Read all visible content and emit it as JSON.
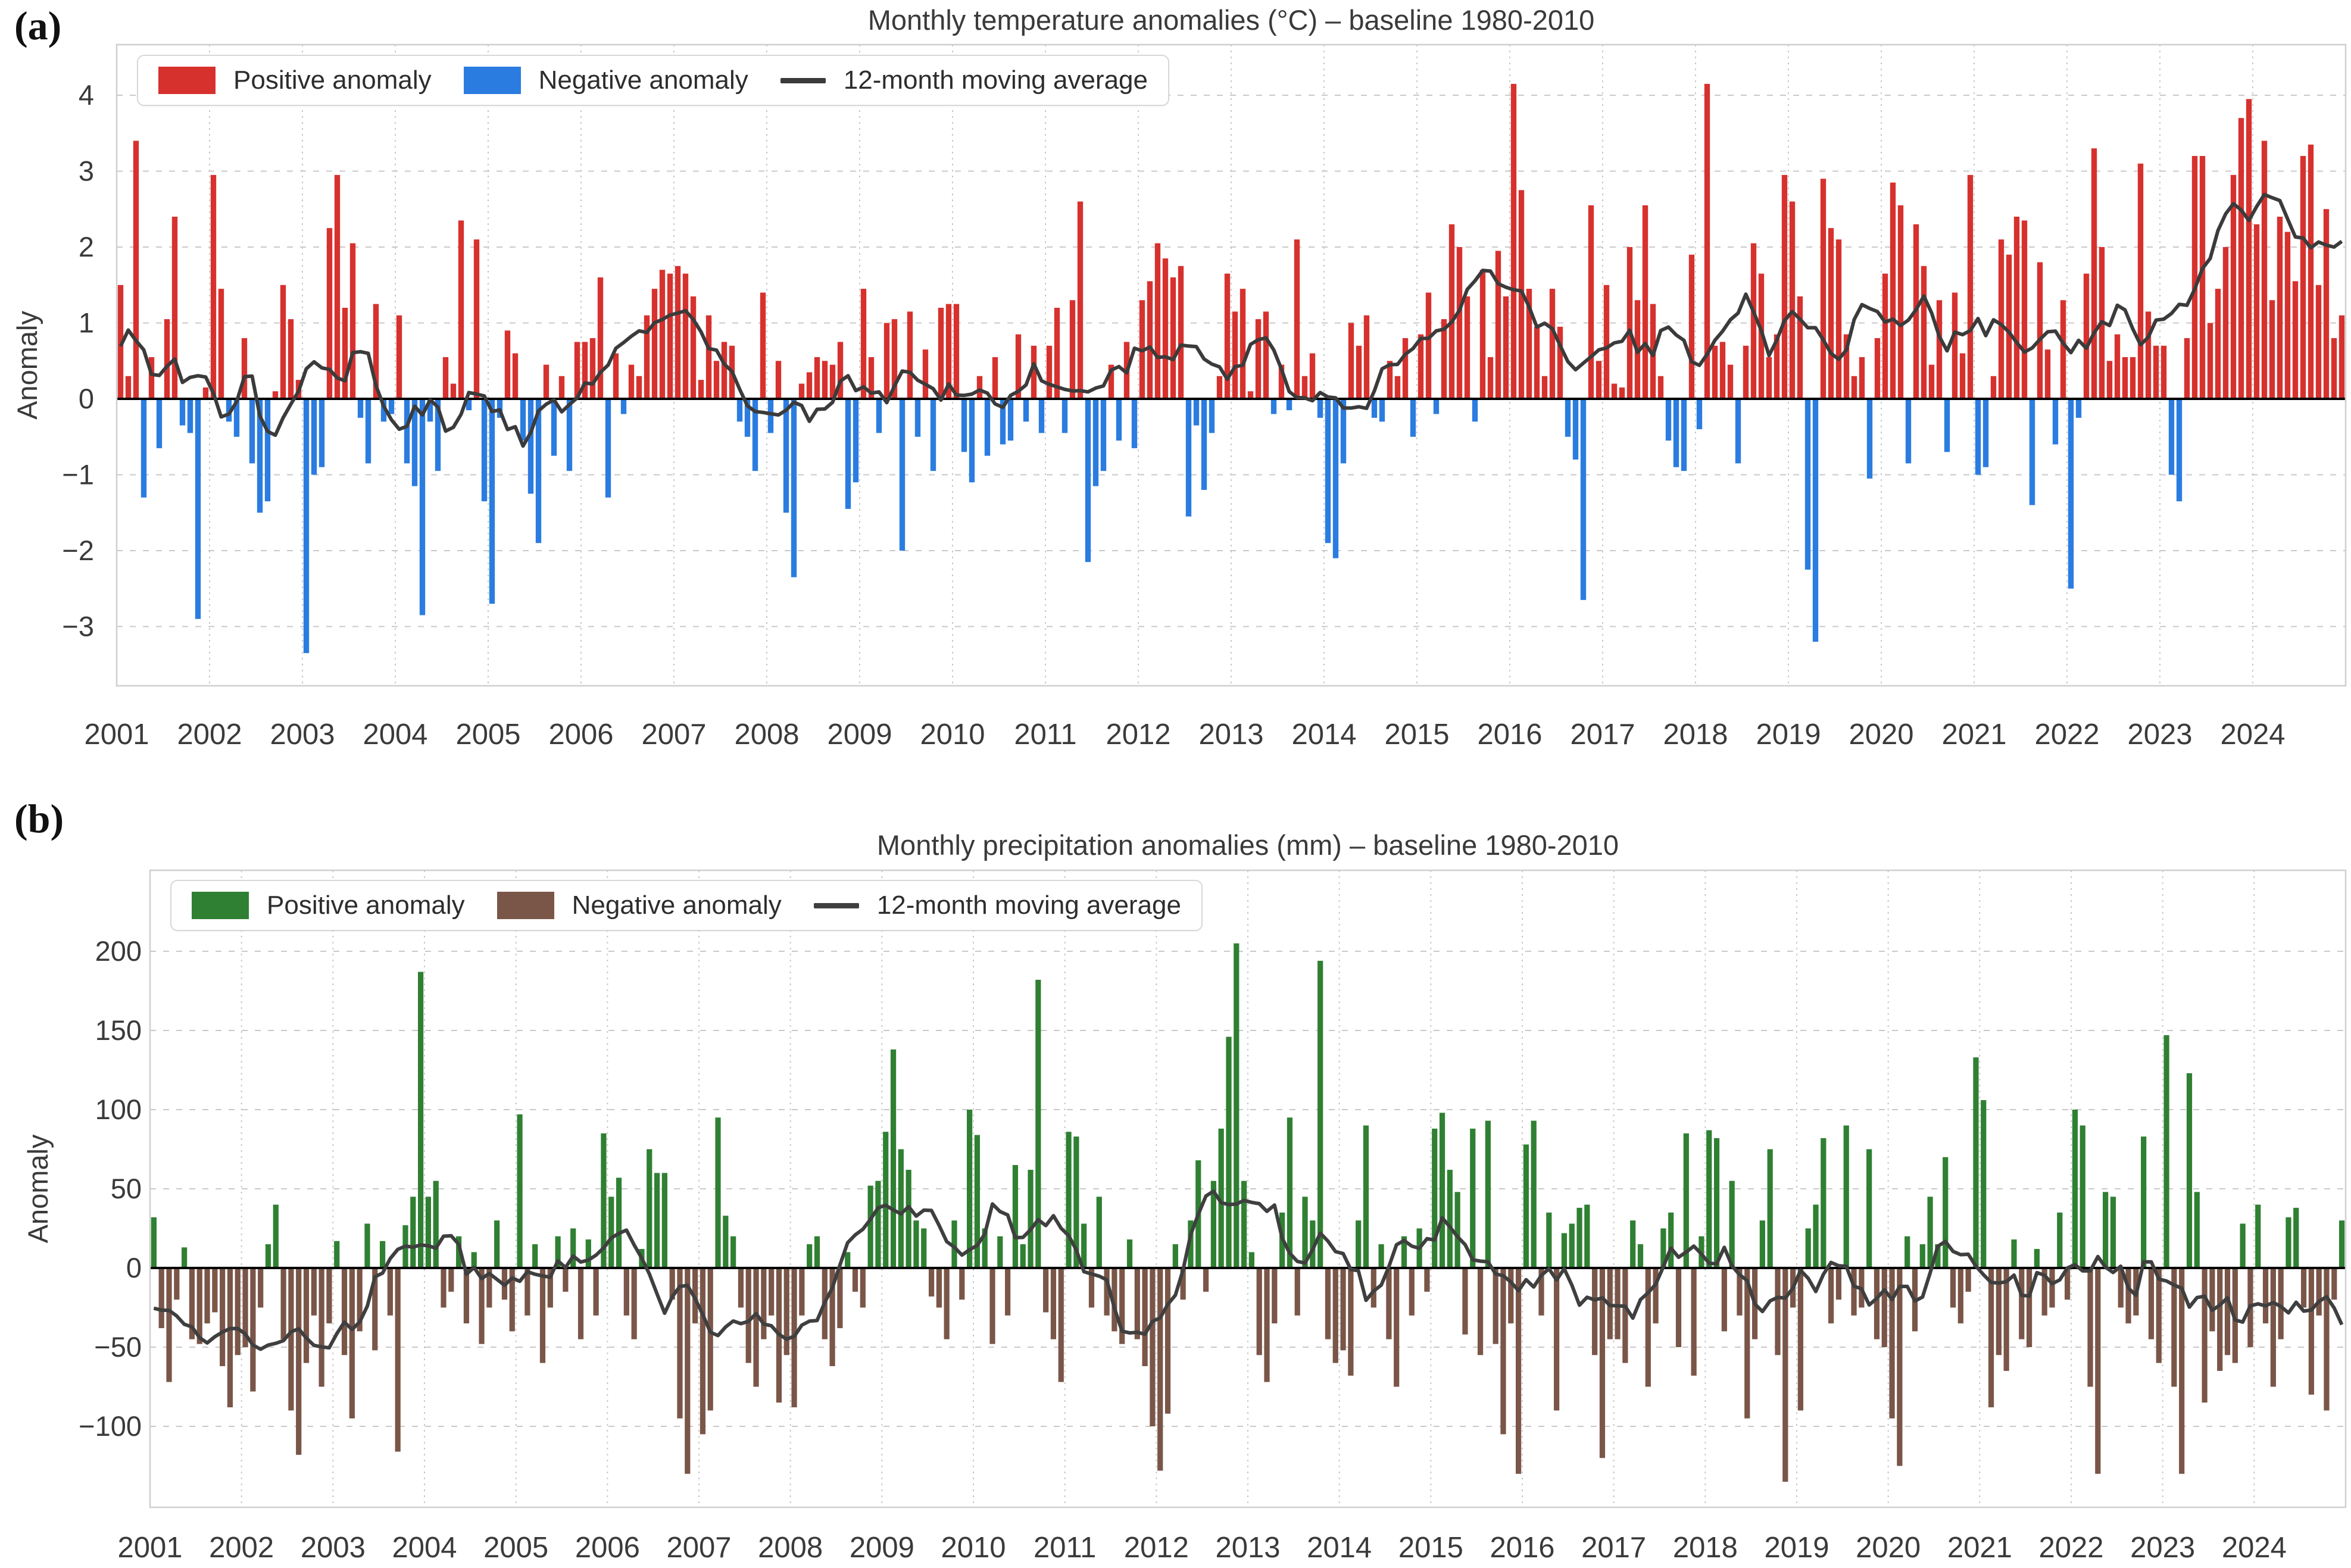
{
  "panel_a_label": "(a)",
  "panel_b_label": "(b)",
  "chart_data": [
    {
      "id": "temperature",
      "type": "bar",
      "title": "Monthly temperature anomalies (°C) – baseline 1980-2010",
      "ylabel": "Anomaly",
      "legend": [
        {
          "label": "Positive anomaly",
          "color": "#d7312e"
        },
        {
          "label": "Negative anomaly",
          "color": "#2b7ce0"
        },
        {
          "label": "12-month moving average",
          "color": "#3b3b3b"
        }
      ],
      "years": [
        "2001",
        "2002",
        "2003",
        "2004",
        "2005",
        "2006",
        "2007",
        "2008",
        "2009",
        "2010",
        "2011",
        "2012",
        "2013",
        "2014",
        "2015",
        "2016",
        "2017",
        "2018",
        "2019",
        "2020",
        "2021",
        "2022",
        "2023",
        "2024"
      ],
      "yticks": [
        4,
        3,
        2,
        1,
        0,
        -1,
        -2,
        -3
      ],
      "ylim": [
        -3.78,
        4.67
      ],
      "moving_average_window": 12,
      "colors": {
        "positive": "#d7312e",
        "negative": "#2b7ce0",
        "ma_line": "#3b3b3b",
        "grid": "#c9c9c9",
        "zero": "#000000",
        "frame": "#cfcfcf",
        "text": "#3a3a3a"
      },
      "monthly_values": [
        1.5,
        0.3,
        3.4,
        -1.3,
        0.55,
        -0.65,
        1.05,
        2.4,
        -0.35,
        -0.45,
        -2.9,
        0.15,
        2.95,
        1.45,
        -0.3,
        -0.5,
        0.8,
        -0.85,
        -1.5,
        -1.35,
        0.1,
        1.5,
        1.05,
        0.25,
        -3.35,
        -1.0,
        -0.9,
        2.25,
        2.95,
        1.2,
        2.05,
        -0.25,
        -0.85,
        1.25,
        -0.3,
        -0.2,
        1.1,
        -0.85,
        -1.15,
        -2.85,
        -0.3,
        -0.95,
        0.55,
        0.2,
        2.35,
        -0.15,
        2.1,
        -1.35,
        -2.7,
        -0.25,
        0.9,
        0.6,
        -0.55,
        -1.25,
        -1.9,
        0.45,
        -0.75,
        0.3,
        -0.95,
        0.75,
        0.75,
        0.8,
        1.6,
        -1.3,
        0.6,
        -0.2,
        0.45,
        0.3,
        1.1,
        1.45,
        1.7,
        1.65,
        1.75,
        1.65,
        1.35,
        0.25,
        1.1,
        0.5,
        0.75,
        0.7,
        -0.3,
        -0.5,
        -0.95,
        1.4,
        -0.45,
        0.5,
        -1.5,
        -2.35,
        0.2,
        0.35,
        0.55,
        0.5,
        0.45,
        0.75,
        -1.45,
        -1.1,
        1.45,
        0.55,
        -0.45,
        1.0,
        1.05,
        -2.0,
        1.15,
        -0.5,
        0.65,
        -0.95,
        1.2,
        1.25,
        1.25,
        -0.7,
        -1.1,
        0.3,
        -0.75,
        0.55,
        -0.6,
        -0.55,
        0.85,
        -0.3,
        0.7,
        -0.45,
        0.7,
        1.2,
        -0.45,
        1.3,
        2.6,
        -2.15,
        -1.15,
        -0.95,
        0.45,
        -0.55,
        0.75,
        -0.65,
        1.3,
        1.55,
        2.05,
        1.85,
        1.6,
        1.75,
        -1.55,
        -0.35,
        -1.2,
        -0.45,
        0.3,
        1.65,
        1.15,
        1.45,
        0.1,
        1.05,
        1.15,
        -0.2,
        0.45,
        -0.15,
        2.1,
        0.3,
        0.6,
        -0.25,
        -1.9,
        -2.1,
        -0.85,
        1.0,
        0.7,
        1.1,
        -0.25,
        -0.3,
        0.5,
        0.3,
        0.8,
        -0.5,
        0.85,
        1.4,
        -0.2,
        1.05,
        2.3,
        2.0,
        1.35,
        -0.3,
        1.7,
        0.55,
        1.95,
        1.35,
        4.15,
        2.75,
        1.45,
        0.95,
        0.3,
        1.45,
        0.95,
        -0.5,
        -0.8,
        -2.65,
        2.55,
        0.5,
        1.5,
        0.2,
        0.15,
        2.0,
        1.3,
        2.55,
        1.25,
        0.3,
        -0.55,
        -0.9,
        -0.95,
        1.9,
        -0.4,
        4.15,
        0.7,
        0.75,
        0.45,
        -0.85,
        0.7,
        2.05,
        1.65,
        0.55,
        0.85,
        2.95,
        2.6,
        1.35,
        -2.25,
        -3.2,
        2.9,
        2.25,
        2.1,
        0.85,
        0.3,
        0.55,
        -1.05,
        0.8,
        1.65,
        2.85,
        2.55,
        -0.85,
        2.3,
        1.75,
        0.45,
        1.3,
        -0.7,
        1.4,
        0.6,
        2.95,
        -1.0,
        -0.9,
        0.3,
        2.1,
        1.9,
        2.4,
        2.35,
        -1.4,
        1.8,
        0.65,
        -0.6,
        1.3,
        -2.5,
        -0.25,
        1.65,
        3.3,
        2.0,
        0.5,
        0.85,
        0.55,
        0.55,
        3.1,
        1.15,
        0.7,
        0.7,
        -1.0,
        -1.35,
        0.8,
        3.2,
        3.2,
        1.0,
        1.45,
        2.0,
        2.95,
        3.7,
        3.95,
        2.3,
        3.4,
        1.3,
        2.4,
        2.2,
        1.55,
        3.2,
        3.35,
        1.5,
        2.5,
        0.8,
        1.1
      ]
    },
    {
      "id": "precipitation",
      "type": "bar",
      "title": "Monthly precipitation anomalies (mm) – baseline 1980-2010",
      "ylabel": "Anomaly",
      "legend": [
        {
          "label": "Positive anomaly",
          "color": "#2f8032"
        },
        {
          "label": "Negative anomaly",
          "color": "#7a5648"
        },
        {
          "label": "12-month moving average",
          "color": "#3f3f3f"
        }
      ],
      "years": [
        "2001",
        "2002",
        "2003",
        "2004",
        "2005",
        "2006",
        "2007",
        "2008",
        "2009",
        "2010",
        "2011",
        "2012",
        "2013",
        "2014",
        "2015",
        "2016",
        "2017",
        "2018",
        "2019",
        "2020",
        "2021",
        "2022",
        "2023",
        "2024"
      ],
      "yticks": [
        200,
        150,
        100,
        50,
        0,
        -50,
        -100
      ],
      "ylim": [
        -151,
        251
      ],
      "moving_average_window": 12,
      "colors": {
        "positive": "#2f8032",
        "negative": "#7a5648",
        "ma_line": "#3f3f3f",
        "grid": "#c9c9c9",
        "zero": "#000000",
        "frame": "#cfcfcf",
        "text": "#3a3a3a"
      },
      "monthly_values": [
        32,
        -38,
        -72,
        -20,
        13,
        -45,
        -48,
        -35,
        -28,
        -62,
        -88,
        -55,
        -50,
        -78,
        -25,
        15,
        40,
        -45,
        -90,
        -118,
        -60,
        -30,
        -75,
        -35,
        17,
        -55,
        -95,
        -40,
        28,
        -52,
        17,
        -30,
        -116,
        27,
        45,
        187,
        45,
        55,
        -25,
        -15,
        20,
        -35,
        10,
        -48,
        -25,
        30,
        -20,
        -40,
        97,
        -30,
        15,
        -60,
        -25,
        20,
        -15,
        25,
        -45,
        18,
        -30,
        85,
        45,
        57,
        -30,
        -45,
        12,
        75,
        60,
        60,
        -20,
        -95,
        -130,
        -35,
        -105,
        -90,
        95,
        33,
        20,
        -25,
        -60,
        -75,
        -45,
        -30,
        -85,
        -55,
        -88,
        -30,
        15,
        20,
        -45,
        -62,
        -38,
        10,
        -15,
        -25,
        52,
        55,
        86,
        138,
        75,
        62,
        30,
        25,
        -18,
        -25,
        -45,
        30,
        -20,
        100,
        84,
        25,
        -48,
        20,
        -30,
        65,
        15,
        62,
        182,
        -28,
        -45,
        -72,
        86,
        83,
        28,
        -25,
        45,
        -30,
        -40,
        -48,
        18,
        -45,
        -62,
        -100,
        -128,
        -92,
        15,
        -20,
        30,
        68,
        -15,
        55,
        88,
        146,
        205,
        55,
        10,
        -55,
        -72,
        -35,
        35,
        95,
        -30,
        45,
        30,
        194,
        -45,
        -60,
        -52,
        -68,
        30,
        90,
        -25,
        15,
        -45,
        -75,
        20,
        -30,
        25,
        -15,
        88,
        98,
        62,
        48,
        -42,
        88,
        -55,
        93,
        -48,
        -105,
        -35,
        -130,
        78,
        93,
        -30,
        35,
        -90,
        22,
        28,
        38,
        40,
        -55,
        -120,
        -45,
        -45,
        -60,
        30,
        15,
        -75,
        -35,
        25,
        35,
        -50,
        85,
        -68,
        20,
        87,
        82,
        -40,
        55,
        -30,
        -95,
        -45,
        30,
        75,
        -55,
        -135,
        -25,
        -90,
        25,
        40,
        82,
        -35,
        -20,
        90,
        -30,
        -25,
        75,
        -45,
        -50,
        -95,
        -125,
        20,
        -40,
        15,
        45,
        15,
        70,
        -25,
        -35,
        -15,
        133,
        106,
        -88,
        -55,
        -65,
        18,
        -45,
        -50,
        12,
        -30,
        -25,
        35,
        -20,
        100,
        90,
        -75,
        -130,
        48,
        45,
        -25,
        -35,
        -30,
        83,
        -45,
        -60,
        147,
        -75,
        -130,
        123,
        48,
        -85,
        -40,
        -65,
        -55,
        -60,
        28,
        -50,
        40,
        -35,
        -75,
        -45,
        32,
        38,
        -25,
        -80,
        -30,
        -90,
        -20,
        30
      ]
    }
  ]
}
